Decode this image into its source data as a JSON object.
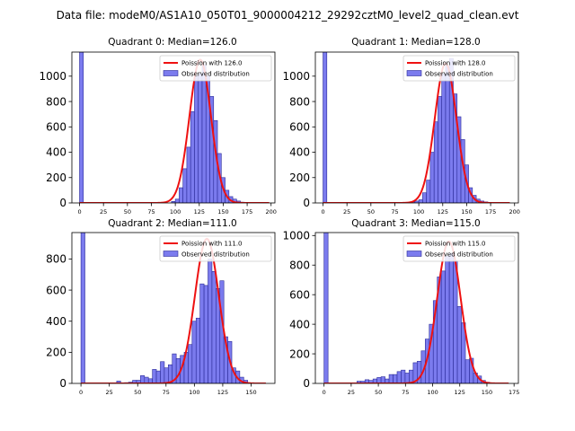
{
  "figure": {
    "suptitle": "Data file: modeM0/AS1A10_050T01_9000004212_29292cztM0_level2_quad_clean.evt"
  },
  "colors": {
    "bar_fill": "#7b7bee",
    "bar_edge": "#2b2b99",
    "curve": "#ee1111"
  },
  "chart_data": [
    {
      "type": "bar",
      "title": "Quadrant 0: Median=126.0",
      "xlim": [
        -8,
        204
      ],
      "ylim": [
        0,
        1190
      ],
      "xticks": [
        0,
        25,
        50,
        75,
        100,
        125,
        150,
        175,
        200
      ],
      "yticks": [
        0,
        200,
        400,
        600,
        800,
        1000
      ],
      "legend": {
        "placement": "top-right",
        "curve_label": "Poission with 126.0",
        "bar_label": "Observed distribution"
      },
      "poisson_mean": 126.0,
      "poisson_peak": 1130,
      "curve_range": [
        0,
        198
      ],
      "bin_width": 4,
      "bins": [
        [
          0,
          1190
        ],
        [
          96,
          12
        ],
        [
          100,
          30
        ],
        [
          104,
          120
        ],
        [
          108,
          270
        ],
        [
          112,
          440
        ],
        [
          116,
          720
        ],
        [
          120,
          1000
        ],
        [
          124,
          1020
        ],
        [
          128,
          1090
        ],
        [
          132,
          1000
        ],
        [
          136,
          840
        ],
        [
          140,
          650
        ],
        [
          144,
          390
        ],
        [
          148,
          200
        ],
        [
          152,
          100
        ],
        [
          156,
          50
        ],
        [
          160,
          30
        ],
        [
          164,
          15
        ],
        [
          168,
          6
        ]
      ]
    },
    {
      "type": "bar",
      "title": "Quadrant 1: Median=128.0",
      "xlim": [
        -8,
        204
      ],
      "ylim": [
        0,
        1190
      ],
      "xticks": [
        0,
        25,
        50,
        75,
        100,
        125,
        150,
        175,
        200
      ],
      "yticks": [
        0,
        200,
        400,
        600,
        800,
        1000
      ],
      "legend": {
        "placement": "top-right",
        "curve_label": "Poission with 128.0",
        "bar_label": "Observed distribution"
      },
      "poisson_mean": 128.0,
      "poisson_peak": 1100,
      "curve_range": [
        0,
        195
      ],
      "bin_width": 4,
      "bins": [
        [
          0,
          1190
        ],
        [
          92,
          8
        ],
        [
          96,
          15
        ],
        [
          100,
          25
        ],
        [
          104,
          80
        ],
        [
          108,
          180
        ],
        [
          112,
          400
        ],
        [
          116,
          640
        ],
        [
          120,
          840
        ],
        [
          124,
          1020
        ],
        [
          128,
          1080
        ],
        [
          132,
          1140
        ],
        [
          136,
          860
        ],
        [
          140,
          680
        ],
        [
          144,
          500
        ],
        [
          148,
          300
        ],
        [
          152,
          120
        ],
        [
          156,
          60
        ],
        [
          160,
          30
        ],
        [
          164,
          15
        ],
        [
          168,
          8
        ]
      ]
    },
    {
      "type": "bar",
      "title": "Quadrant 2: Median=111.0",
      "xlim": [
        -8,
        171
      ],
      "ylim": [
        0,
        970
      ],
      "xticks": [
        0,
        25,
        50,
        75,
        100,
        125,
        150
      ],
      "yticks": [
        0,
        200,
        400,
        600,
        800
      ],
      "legend": {
        "placement": "top-right",
        "curve_label": "Poission with 111.0",
        "bar_label": "Observed distribution"
      },
      "poisson_mean": 111.0,
      "poisson_peak": 930,
      "curve_range": [
        0,
        163
      ],
      "bin_width": 3.5,
      "bins": [
        [
          0,
          970
        ],
        [
          31.5,
          15
        ],
        [
          38.5,
          5
        ],
        [
          42,
          8
        ],
        [
          45.5,
          20
        ],
        [
          49,
          20
        ],
        [
          52.5,
          50
        ],
        [
          56,
          40
        ],
        [
          59.5,
          30
        ],
        [
          63,
          90
        ],
        [
          66.5,
          80
        ],
        [
          70,
          140
        ],
        [
          73.5,
          100
        ],
        [
          77,
          120
        ],
        [
          80.5,
          190
        ],
        [
          84,
          160
        ],
        [
          87.5,
          180
        ],
        [
          91,
          200
        ],
        [
          94.5,
          250
        ],
        [
          98,
          400
        ],
        [
          101.5,
          420
        ],
        [
          105,
          640
        ],
        [
          108.5,
          630
        ],
        [
          112,
          800
        ],
        [
          115.5,
          720
        ],
        [
          119,
          610
        ],
        [
          122.5,
          660
        ],
        [
          126,
          300
        ],
        [
          129.5,
          270
        ],
        [
          133,
          100
        ],
        [
          136.5,
          80
        ],
        [
          140,
          40
        ],
        [
          143.5,
          20
        ]
      ]
    },
    {
      "type": "bar",
      "title": "Quadrant 3: Median=115.0",
      "xlim": [
        -8,
        179
      ],
      "ylim": [
        0,
        1020
      ],
      "xticks": [
        0,
        25,
        50,
        75,
        100,
        125,
        150,
        175
      ],
      "yticks": [
        0,
        200,
        400,
        600,
        800,
        1000
      ],
      "legend": {
        "placement": "top-right",
        "curve_label": "Poission with 115.0",
        "bar_label": "Observed distribution"
      },
      "poisson_mean": 115.0,
      "poisson_peak": 960,
      "curve_range": [
        0,
        170
      ],
      "bin_width": 3.7,
      "bins": [
        [
          0,
          1020
        ],
        [
          30.3,
          15
        ],
        [
          34,
          15
        ],
        [
          37.7,
          25
        ],
        [
          41.4,
          20
        ],
        [
          45.1,
          30
        ],
        [
          48.8,
          40
        ],
        [
          52.5,
          45
        ],
        [
          56.2,
          30
        ],
        [
          59.9,
          60
        ],
        [
          63.6,
          60
        ],
        [
          67.3,
          80
        ],
        [
          71,
          90
        ],
        [
          74.7,
          70
        ],
        [
          78.4,
          90
        ],
        [
          82.1,
          140
        ],
        [
          85.8,
          150
        ],
        [
          89.5,
          220
        ],
        [
          93.2,
          300
        ],
        [
          96.9,
          400
        ],
        [
          100.6,
          560
        ],
        [
          104.3,
          720
        ],
        [
          108,
          760
        ],
        [
          111.7,
          860
        ],
        [
          115.4,
          880
        ],
        [
          119.1,
          830
        ],
        [
          122.8,
          520
        ],
        [
          126.5,
          410
        ],
        [
          130.2,
          160
        ],
        [
          133.9,
          170
        ],
        [
          137.6,
          70
        ],
        [
          141.3,
          50
        ],
        [
          145,
          20
        ],
        [
          148.7,
          8
        ]
      ]
    }
  ]
}
